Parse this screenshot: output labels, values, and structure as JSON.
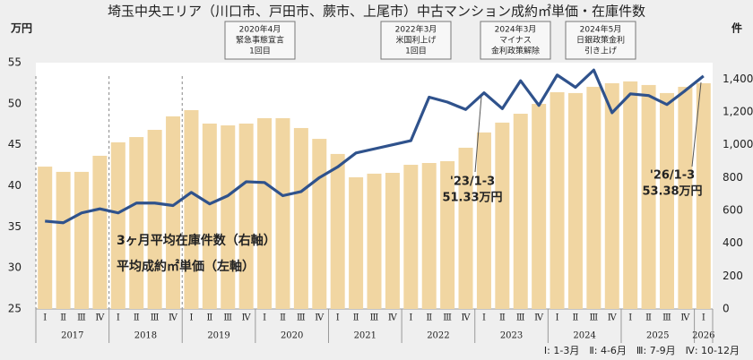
{
  "chart_data": {
    "type": "bar_line",
    "title": "埼玉中央エリア（川口市、戸田市、蕨市、上尾市）中古マンション成約㎡単価・在庫件数",
    "y_unit": "万円",
    "y2_unit": "件",
    "categories": [
      "Ⅰ",
      "Ⅱ",
      "Ⅲ",
      "Ⅳ",
      "Ⅰ",
      "Ⅱ",
      "Ⅲ",
      "Ⅳ",
      "Ⅰ",
      "Ⅱ",
      "Ⅲ",
      "Ⅳ",
      "Ⅰ",
      "Ⅱ",
      "Ⅲ",
      "Ⅳ",
      "Ⅰ",
      "Ⅱ",
      "Ⅲ",
      "Ⅳ",
      "Ⅰ",
      "Ⅱ",
      "Ⅲ",
      "Ⅳ",
      "Ⅰ",
      "Ⅱ",
      "Ⅲ",
      "Ⅳ",
      "Ⅰ",
      "Ⅱ",
      "Ⅲ",
      "Ⅳ",
      "Ⅰ",
      "Ⅱ",
      "Ⅲ",
      "Ⅳ",
      "Ⅰ"
    ],
    "year_groups": [
      {
        "label": "2017",
        "quarters": 4
      },
      {
        "label": "2018",
        "quarters": 4
      },
      {
        "label": "2019",
        "quarters": 4
      },
      {
        "label": "2020",
        "quarters": 4
      },
      {
        "label": "2021",
        "quarters": 4
      },
      {
        "label": "2022",
        "quarters": 4
      },
      {
        "label": "2023",
        "quarters": 4
      },
      {
        "label": "2024",
        "quarters": 4
      },
      {
        "label": "2025",
        "quarters": 4
      },
      {
        "label": "2026",
        "quarters": 1
      }
    ],
    "series": [
      {
        "name": "3ヶ月平均在庫件数（右軸）",
        "type": "bar",
        "axis": "y2",
        "color": "#f1d6a2",
        "values": [
          867,
          835,
          835,
          933,
          1015,
          1047,
          1091,
          1173,
          1211,
          1129,
          1118,
          1129,
          1162,
          1162,
          1102,
          1036,
          944,
          802,
          824,
          829,
          878,
          889,
          900,
          982,
          1075,
          1135,
          1189,
          1249,
          1320,
          1315,
          1353,
          1375,
          1386,
          1364,
          1315,
          1353,
          1375
        ]
      },
      {
        "name": "平均成約㎡単価（左軸）",
        "type": "line",
        "color": "#2f528c",
        "values": [
          35.7,
          35.5,
          36.7,
          37.2,
          36.7,
          37.9,
          37.9,
          37.6,
          39.2,
          37.8,
          38.8,
          40.5,
          40.4,
          38.8,
          39.3,
          41.0,
          42.3,
          44.0,
          44.5,
          45.0,
          45.5,
          50.8,
          50.2,
          49.3,
          51.33,
          49.4,
          52.8,
          49.8,
          53.5,
          52.0,
          54.1,
          48.9,
          51.2,
          51.0,
          49.9,
          51.6,
          53.38
        ]
      }
    ],
    "ylim": [
      25,
      55
    ],
    "yticks": [
      25,
      30,
      35,
      40,
      45,
      50,
      55
    ],
    "y2lim": [
      0,
      1500
    ],
    "y2ticks": [
      0,
      200,
      400,
      600,
      800,
      {
        "value": 1000,
        "label": "1,000"
      },
      {
        "value": 1200,
        "label": "1,200"
      },
      {
        "value": 1400,
        "label": "1,400"
      }
    ],
    "events": [
      {
        "lines": [
          "2020年4月",
          "緊急事態宣言",
          "1回目"
        ]
      },
      {
        "lines": [
          "2022年3月",
          "米国利上げ",
          "1回目"
        ]
      },
      {
        "lines": [
          "2024年3月",
          "マイナス",
          "金利政策解除"
        ]
      },
      {
        "lines": [
          "2024年5月",
          "日銀政策金利",
          "引き上げ"
        ]
      }
    ],
    "callouts": [
      {
        "lines": [
          "'23/1-3",
          "51.33万円"
        ]
      },
      {
        "lines": [
          "'26/1-3",
          "53.38万円"
        ]
      }
    ],
    "footnote": "Ⅰ: 1-3月　Ⅱ: 4-6月　Ⅲ: 7-9月　Ⅳ: 10-12月"
  }
}
